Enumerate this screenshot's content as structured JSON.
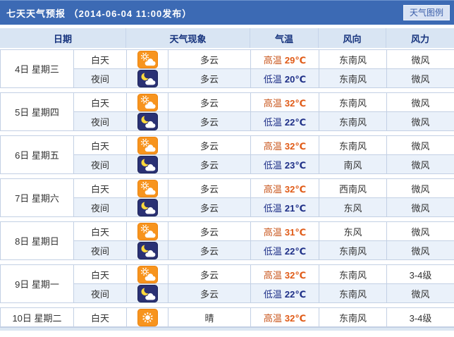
{
  "header": {
    "title": "七天天气预报 （2014-06-04 11:00发布）",
    "legend_button": "天气图例"
  },
  "columns": [
    "日期",
    "天气现象",
    "气温",
    "风向",
    "风力"
  ],
  "labels": {
    "day": "白天",
    "night": "夜间",
    "high": "高温",
    "low": "低温"
  },
  "colors": {
    "titlebar_blue": "#3c6ab4",
    "header_row_blue": "#d9e5f3",
    "night_row_blue": "#eaf1fa",
    "high_temp_orange": "#e05a16",
    "low_temp_navy": "#1e2f87",
    "icon_orange": "#f7941e",
    "icon_night_navy": "#2a3174"
  },
  "rows": [
    {
      "date": "4日 星期三",
      "periods": [
        {
          "part": "day",
          "icon": "partly-cloudy-day",
          "phenomenon": "多云",
          "temp_label": "高温",
          "temp": "29℃",
          "wind": "东南风",
          "force": "微风"
        },
        {
          "part": "night",
          "icon": "cloudy-night",
          "phenomenon": "多云",
          "temp_label": "低温",
          "temp": "20℃",
          "wind": "东南风",
          "force": "微风"
        }
      ]
    },
    {
      "date": "5日 星期四",
      "periods": [
        {
          "part": "day",
          "icon": "partly-cloudy-day",
          "phenomenon": "多云",
          "temp_label": "高温",
          "temp": "32℃",
          "wind": "东南风",
          "force": "微风"
        },
        {
          "part": "night",
          "icon": "cloudy-night",
          "phenomenon": "多云",
          "temp_label": "低温",
          "temp": "22℃",
          "wind": "东南风",
          "force": "微风"
        }
      ]
    },
    {
      "date": "6日 星期五",
      "periods": [
        {
          "part": "day",
          "icon": "partly-cloudy-day",
          "phenomenon": "多云",
          "temp_label": "高温",
          "temp": "32℃",
          "wind": "东南风",
          "force": "微风"
        },
        {
          "part": "night",
          "icon": "cloudy-night",
          "phenomenon": "多云",
          "temp_label": "低温",
          "temp": "23℃",
          "wind": "南风",
          "force": "微风"
        }
      ]
    },
    {
      "date": "7日 星期六",
      "periods": [
        {
          "part": "day",
          "icon": "partly-cloudy-day",
          "phenomenon": "多云",
          "temp_label": "高温",
          "temp": "32℃",
          "wind": "西南风",
          "force": "微风"
        },
        {
          "part": "night",
          "icon": "cloudy-night",
          "phenomenon": "多云",
          "temp_label": "低温",
          "temp": "21℃",
          "wind": "东风",
          "force": "微风"
        }
      ]
    },
    {
      "date": "8日 星期日",
      "periods": [
        {
          "part": "day",
          "icon": "partly-cloudy-day",
          "phenomenon": "多云",
          "temp_label": "高温",
          "temp": "31℃",
          "wind": "东风",
          "force": "微风"
        },
        {
          "part": "night",
          "icon": "cloudy-night",
          "phenomenon": "多云",
          "temp_label": "低温",
          "temp": "22℃",
          "wind": "东南风",
          "force": "微风"
        }
      ]
    },
    {
      "date": "9日 星期一",
      "periods": [
        {
          "part": "day",
          "icon": "partly-cloudy-day",
          "phenomenon": "多云",
          "temp_label": "高温",
          "temp": "32℃",
          "wind": "东南风",
          "force": "3-4级"
        },
        {
          "part": "night",
          "icon": "cloudy-night",
          "phenomenon": "多云",
          "temp_label": "低温",
          "temp": "22℃",
          "wind": "东南风",
          "force": "微风"
        }
      ]
    },
    {
      "date": "10日 星期二",
      "periods": [
        {
          "part": "day",
          "icon": "sunny",
          "phenomenon": "晴",
          "temp_label": "高温",
          "temp": "32℃",
          "wind": "东南风",
          "force": "3-4级"
        }
      ]
    }
  ]
}
